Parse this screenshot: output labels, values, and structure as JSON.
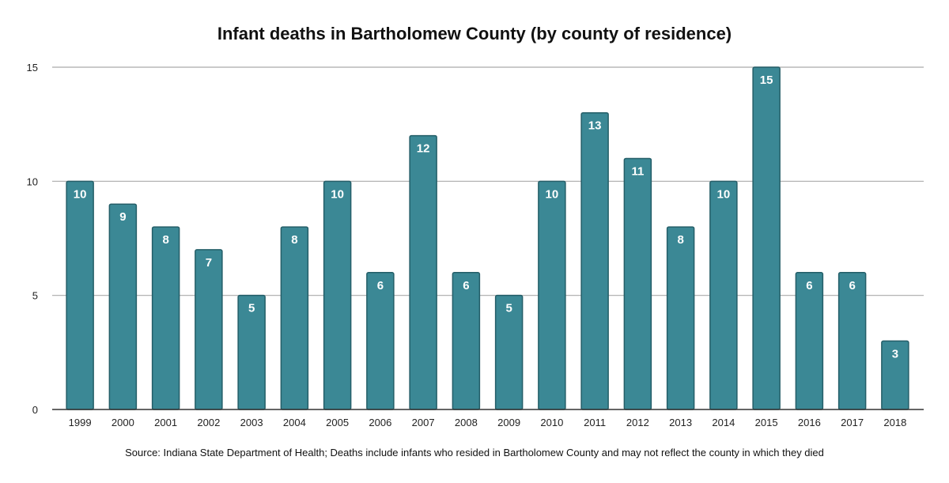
{
  "chart_data": {
    "type": "bar",
    "title": "Infant deaths in Bartholomew County (by county of residence)",
    "xlabel": "",
    "ylabel": "",
    "ylim": [
      0,
      15
    ],
    "yticks": [
      0,
      5,
      10,
      15
    ],
    "grid": true,
    "categories": [
      "1999",
      "2000",
      "2001",
      "2002",
      "2003",
      "2004",
      "2005",
      "2006",
      "2007",
      "2008",
      "2009",
      "2010",
      "2011",
      "2012",
      "2013",
      "2014",
      "2015",
      "2016",
      "2017",
      "2018"
    ],
    "values": [
      10,
      9,
      8,
      7,
      5,
      8,
      10,
      6,
      12,
      6,
      5,
      10,
      13,
      11,
      8,
      10,
      15,
      6,
      6,
      3
    ],
    "bar_color": "#3b8895",
    "bar_border": "#245e68",
    "data_labels": true,
    "source": "Source: Indiana State Department of Health; Deaths include infants who resided in Bartholomew County and may not reflect the county in which they died"
  }
}
